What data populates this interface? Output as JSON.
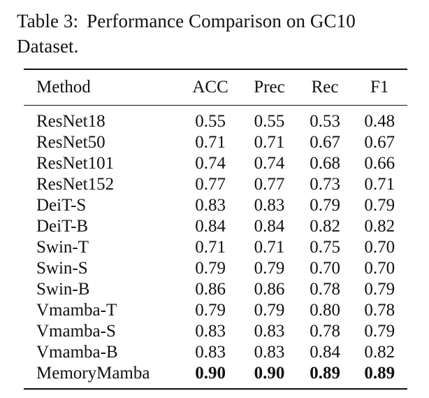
{
  "caption": {
    "label": "Table 3:",
    "text": "Performance Comparison on GC10 Dataset."
  },
  "table": {
    "headers": [
      "Method",
      "ACC",
      "Prec",
      "Rec",
      "F1"
    ],
    "rows": [
      {
        "method": "ResNet18",
        "acc": "0.55",
        "prec": "0.55",
        "rec": "0.53",
        "f1": "0.48"
      },
      {
        "method": "ResNet50",
        "acc": "0.71",
        "prec": "0.71",
        "rec": "0.67",
        "f1": "0.67"
      },
      {
        "method": "ResNet101",
        "acc": "0.74",
        "prec": "0.74",
        "rec": "0.68",
        "f1": "0.66"
      },
      {
        "method": "ResNet152",
        "acc": "0.77",
        "prec": "0.77",
        "rec": "0.73",
        "f1": "0.71"
      },
      {
        "method": "DeiT-S",
        "acc": "0.83",
        "prec": "0.83",
        "rec": "0.79",
        "f1": "0.79"
      },
      {
        "method": "DeiT-B",
        "acc": "0.84",
        "prec": "0.84",
        "rec": "0.82",
        "f1": "0.82"
      },
      {
        "method": "Swin-T",
        "acc": "0.71",
        "prec": "0.71",
        "rec": "0.75",
        "f1": "0.70"
      },
      {
        "method": "Swin-S",
        "acc": "0.79",
        "prec": "0.79",
        "rec": "0.70",
        "f1": "0.70"
      },
      {
        "method": "Swin-B",
        "acc": "0.86",
        "prec": "0.86",
        "rec": "0.78",
        "f1": "0.79"
      },
      {
        "method": "Vmamba-T",
        "acc": "0.79",
        "prec": "0.79",
        "rec": "0.80",
        "f1": "0.78"
      },
      {
        "method": "Vmamba-S",
        "acc": "0.83",
        "prec": "0.83",
        "rec": "0.78",
        "f1": "0.79"
      },
      {
        "method": "Vmamba-B",
        "acc": "0.83",
        "prec": "0.83",
        "rec": "0.84",
        "f1": "0.82"
      },
      {
        "method": "MemoryMamba",
        "acc": "0.90",
        "prec": "0.90",
        "rec": "0.89",
        "f1": "0.89",
        "bold_metrics": true
      }
    ]
  }
}
